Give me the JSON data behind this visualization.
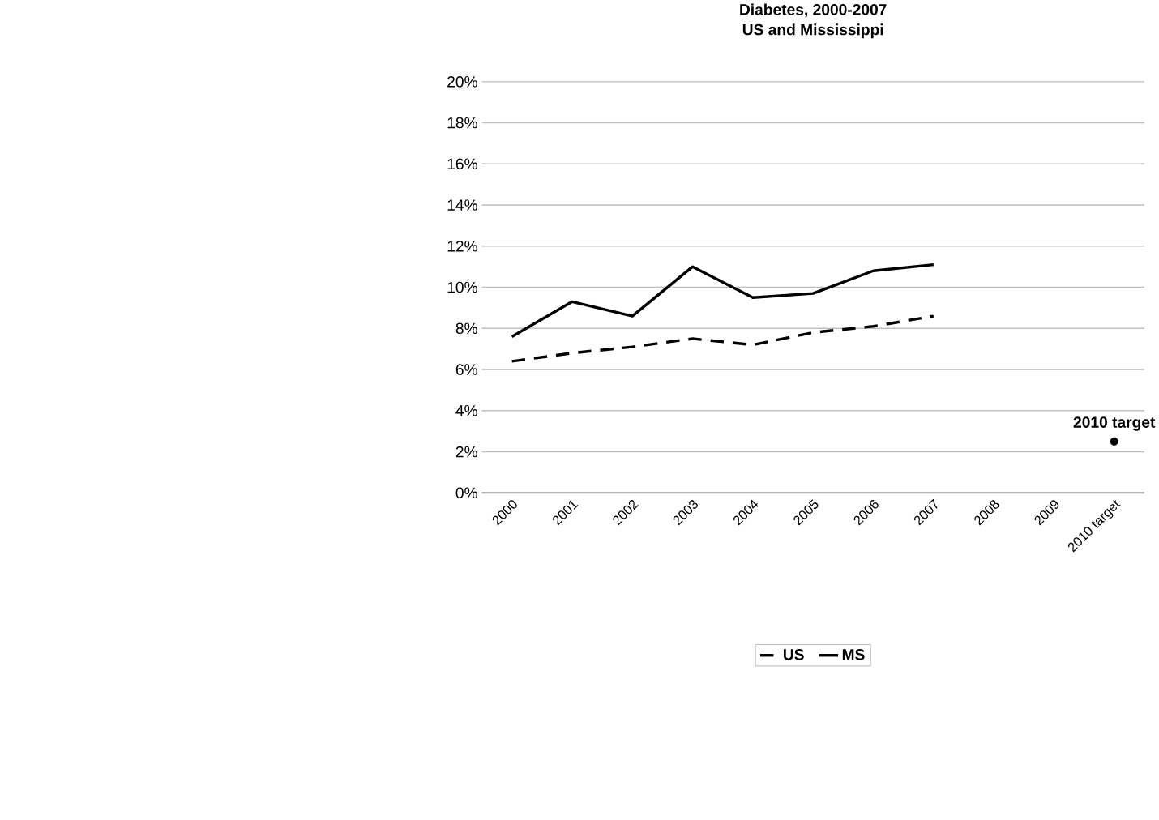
{
  "chart_data": {
    "type": "line",
    "title": "Diabetes, 2000-2007",
    "subtitle": "US and Mississippi",
    "categories": [
      "2000",
      "2001",
      "2002",
      "2003",
      "2004",
      "2005",
      "2006",
      "2007",
      "2008",
      "2009",
      "2010 target"
    ],
    "series": [
      {
        "name": "US",
        "color": "#000000",
        "line_style": "dashed",
        "marker": "none",
        "values": [
          6.4,
          6.8,
          7.1,
          7.5,
          7.2,
          7.8,
          8.1,
          8.6,
          null,
          null,
          null
        ]
      },
      {
        "name": "MS",
        "color": "#000000",
        "line_style": "solid",
        "marker": "none",
        "values": [
          7.6,
          9.3,
          8.6,
          11.0,
          9.5,
          9.7,
          10.8,
          11.1,
          null,
          null,
          null
        ]
      },
      {
        "type": "scatter",
        "color": "#000000",
        "marker": "circle",
        "values": [
          null,
          null,
          null,
          null,
          null,
          null,
          null,
          null,
          null,
          null,
          2.5
        ]
      }
    ],
    "ylim": [
      0,
      20
    ],
    "yticks": [
      {
        "value": 0,
        "label": "0%"
      },
      {
        "value": 2,
        "label": "2%"
      },
      {
        "value": 4,
        "label": "4%"
      },
      {
        "value": 6,
        "label": "6%"
      },
      {
        "value": 8,
        "label": "8%"
      },
      {
        "value": 10,
        "label": "10%"
      },
      {
        "value": 12,
        "label": "12%"
      },
      {
        "value": 14,
        "label": "14%"
      },
      {
        "value": 16,
        "label": "16%"
      },
      {
        "value": 18,
        "label": "18%"
      },
      {
        "value": 20,
        "label": "20%"
      }
    ],
    "grid": "y",
    "legend": "bottom",
    "annotations": [
      {
        "text": "2010 target",
        "x": "2010 target",
        "y": 2.5
      }
    ]
  }
}
